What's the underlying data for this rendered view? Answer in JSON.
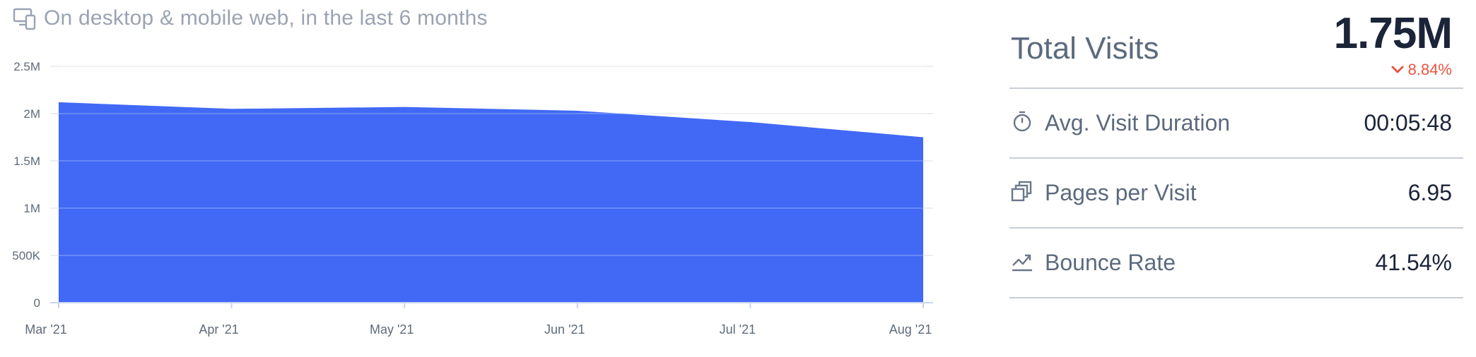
{
  "header": {
    "subtitle": "On desktop & mobile web, in the last 6 months",
    "icon": "devices-icon"
  },
  "chart_data": {
    "type": "area",
    "x": [
      "Mar '21",
      "Apr '21",
      "May '21",
      "Jun '21",
      "Jul '21",
      "Aug '21"
    ],
    "series": [
      {
        "values": [
          2120000,
          2050000,
          2070000,
          2030000,
          1910000,
          1750000
        ],
        "color": "#4169f6"
      }
    ],
    "ylim": [
      0,
      2500000
    ],
    "yticks": [
      {
        "value": 0,
        "label": "0"
      },
      {
        "value": 500000,
        "label": "500K"
      },
      {
        "value": 1000000,
        "label": "1M"
      },
      {
        "value": 1500000,
        "label": "1.5M"
      },
      {
        "value": 2000000,
        "label": "2M"
      },
      {
        "value": 2500000,
        "label": "2.5M"
      }
    ],
    "grid": true,
    "xlabel": "",
    "ylabel": ""
  },
  "panel": {
    "total_label": "Total Visits",
    "total_value": "1.75M",
    "total_change": "8.84%",
    "change_color": "#e8553f",
    "metrics": [
      {
        "label": "Avg. Visit Duration",
        "value": "00:05:48",
        "icon": "stopwatch-icon"
      },
      {
        "label": "Pages per Visit",
        "value": "6.95",
        "icon": "pages-icon"
      },
      {
        "label": "Bounce Rate",
        "value": "41.54%",
        "icon": "bounce-icon"
      }
    ]
  }
}
